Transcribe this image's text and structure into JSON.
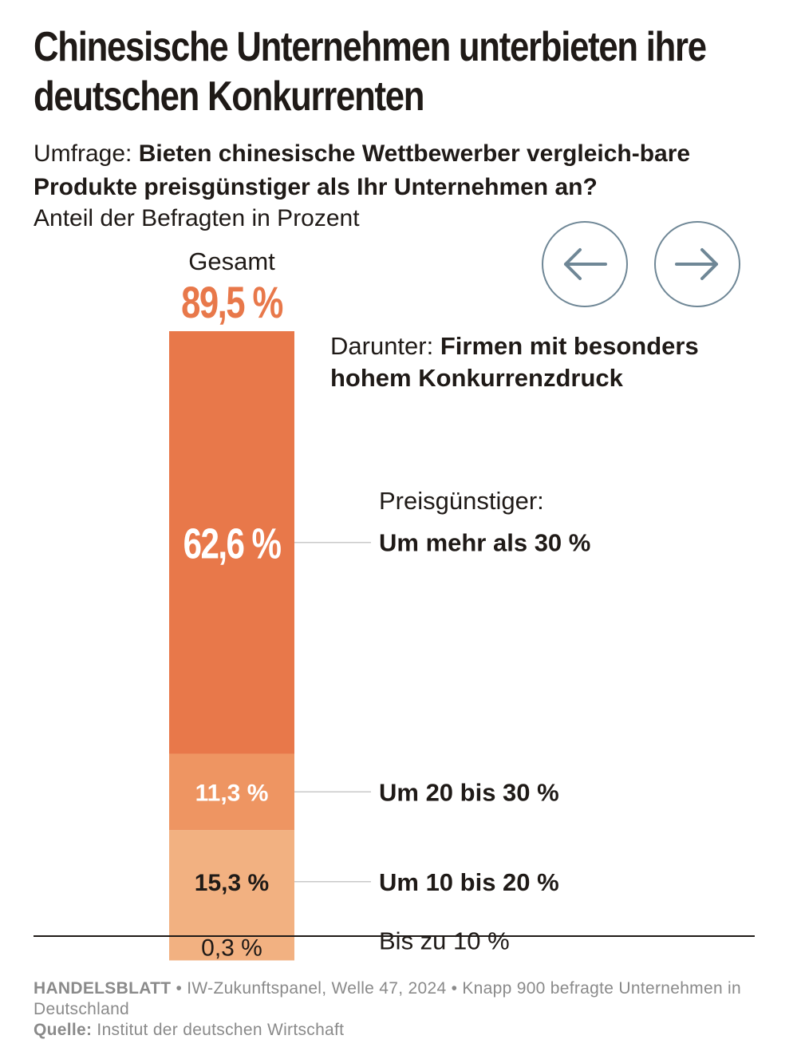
{
  "title": "Chinesische Unternehmen unterbieten ihre deutschen Konkurrenten",
  "question": {
    "prefix": "Umfrage: ",
    "text": "Bieten chinesische Wettbewerber vergleich-bare Produkte preisgünstiger als Ihr Unternehmen an?"
  },
  "unit_note": "Anteil der Befragten in Prozent",
  "nav": {
    "prev_icon": "arrow-left-icon",
    "next_icon": "arrow-right-icon",
    "border_color": "#6f8796"
  },
  "subheading": {
    "prefix": "Darunter: ",
    "text": "Firmen mit besonders hohem Konkurrenzdruck"
  },
  "category_heading": "Preisgünstiger:",
  "chart_data": {
    "type": "bar",
    "stacked": true,
    "total": {
      "label": "Gesamt",
      "value": 89.5,
      "display": "89,5 %"
    },
    "unit": "%",
    "series": [
      {
        "name": "Um mehr als 30 %",
        "value": 62.6,
        "display": "62,6 %",
        "color": "#e8784a",
        "text_color": "#ffffff",
        "bold_name": true
      },
      {
        "name": "Um 20 bis 30 %",
        "value": 11.3,
        "display": "11,3 %",
        "color": "#ee9562",
        "text_color": "#ffffff",
        "bold_name": true
      },
      {
        "name": "Um 10 bis 20 %",
        "value": 15.3,
        "display": "15,3 %",
        "color": "#f2b181",
        "text_color": "#1f1a17",
        "bold_name": true
      },
      {
        "name": "Bis zu 10 %",
        "value": 0.3,
        "display": "0,3 %",
        "color": "#f2b181",
        "text_color": "#1f1a17",
        "bold_name": false
      }
    ]
  },
  "footer": {
    "brand": "HANDELSBLATT",
    "meta": " • IW-Zukunftspanel, Welle 47, 2024 • Knapp 900 befragte Unternehmen in Deutschland",
    "source_label": "Quelle:",
    "source": " Institut der deutschen Wirtschaft"
  }
}
